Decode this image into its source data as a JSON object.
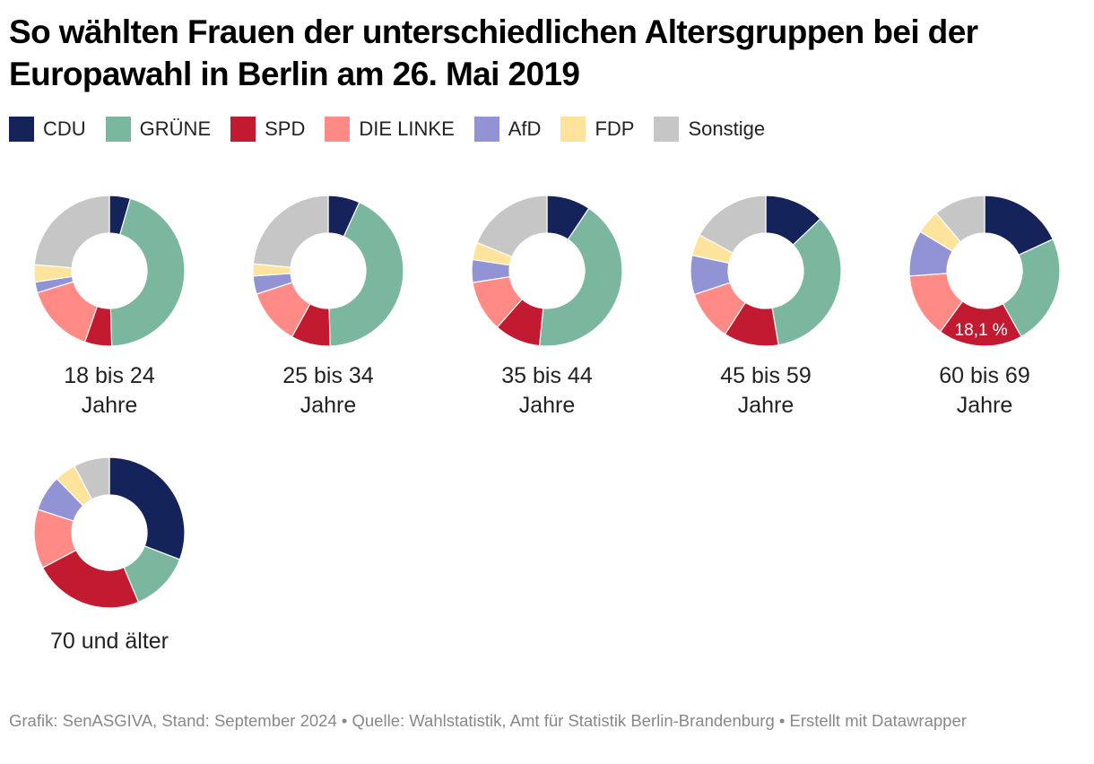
{
  "title": "So wählten Frauen der unterschiedlichen Altersgruppen bei der Europawahl in Berlin am 26. Mai 2019",
  "legend": [
    {
      "label": "CDU",
      "color": "#14245a"
    },
    {
      "label": "GRÜNE",
      "color": "#7bb79f"
    },
    {
      "label": "SPD",
      "color": "#c21a30"
    },
    {
      "label": "DIE LINKE",
      "color": "#ff8a86"
    },
    {
      "label": "AfD",
      "color": "#9193d5"
    },
    {
      "label": "FDP",
      "color": "#fde39b"
    },
    {
      "label": "Sonstige",
      "color": "#c6c6c6"
    }
  ],
  "chart_data": {
    "type": "pie",
    "subtype": "donut",
    "title": "So wählten Frauen der unterschiedlichen Altersgruppen bei der Europawahl in Berlin am 26. Mai 2019",
    "unit": "%",
    "categories": [
      "CDU",
      "GRÜNE",
      "SPD",
      "DIE LINKE",
      "AfD",
      "FDP",
      "Sonstige"
    ],
    "colors": [
      "#14245a",
      "#7bb79f",
      "#c21a30",
      "#ff8a86",
      "#9193d5",
      "#fde39b",
      "#c6c6c6"
    ],
    "legend_position": "top-left",
    "charts": [
      {
        "label_line1": "18 bis 24",
        "label_line2": "Jahre",
        "values": [
          4.5,
          45.0,
          5.8,
          15.0,
          2.3,
          3.7,
          23.7
        ]
      },
      {
        "label_line1": "25 bis 34",
        "label_line2": "Jahre",
        "values": [
          6.8,
          42.8,
          8.4,
          12.0,
          3.9,
          2.6,
          23.5
        ]
      },
      {
        "label_line1": "35 bis 44",
        "label_line2": "Jahre",
        "values": [
          9.4,
          42.2,
          9.9,
          11.0,
          4.9,
          3.7,
          18.9
        ]
      },
      {
        "label_line1": "45 bis 59",
        "label_line2": "Jahre",
        "values": [
          12.9,
          34.4,
          11.8,
          10.8,
          8.4,
          4.6,
          17.1
        ]
      },
      {
        "label_line1": "60 bis 69",
        "label_line2": "Jahre",
        "values": [
          18.1,
          23.8,
          18.1,
          13.9,
          9.8,
          5.2,
          11.1
        ],
        "annotation": {
          "category": "SPD",
          "text": "18,1 %"
        }
      },
      {
        "label_line1": "70 und älter",
        "label_line2": "",
        "values": [
          30.8,
          12.9,
          23.6,
          12.7,
          7.7,
          4.6,
          7.7
        ]
      }
    ]
  },
  "footer": "Grafik: SenASGIVA, Stand: September 2024 • Quelle: Wahlstatistik, Amt für Statistik Berlin-Brandenburg • Erstellt mit Datawrapper"
}
